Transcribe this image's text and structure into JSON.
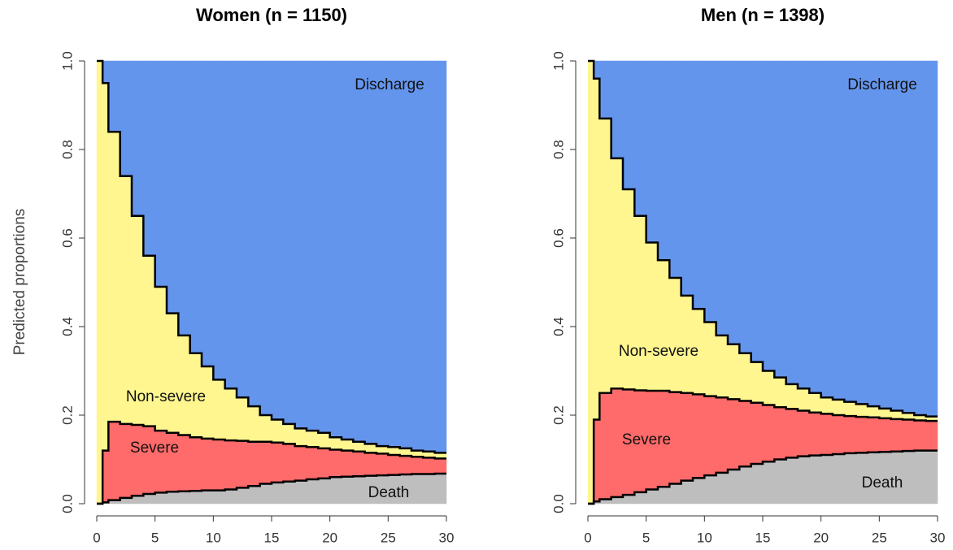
{
  "chart_data": [
    {
      "type": "step-area",
      "title": "Women (n = 1150)",
      "ylabel": "Predicted proportions",
      "x": [
        0,
        0.5,
        1,
        2,
        3,
        4,
        5,
        6,
        7,
        8,
        9,
        10,
        11,
        12,
        13,
        14,
        15,
        16,
        17,
        18,
        19,
        20,
        21,
        22,
        23,
        24,
        25,
        26,
        27,
        28,
        29
      ],
      "xlim": [
        0,
        30
      ],
      "xticks": [
        0,
        5,
        10,
        15,
        20,
        25,
        30
      ],
      "ylim": [
        0,
        1
      ],
      "yticks": [
        {
          "value": 0,
          "label": "0.0"
        },
        {
          "value": 0.2,
          "label": "0.2"
        },
        {
          "value": 0.4,
          "label": "0.4"
        },
        {
          "value": 0.6,
          "label": "0.6"
        },
        {
          "value": 0.8,
          "label": "0.8"
        },
        {
          "value": 1,
          "label": "1.0"
        }
      ],
      "series": [
        {
          "name": "Death",
          "color": "#bebebe",
          "values": [
            0,
            0.003,
            0.008,
            0.013,
            0.018,
            0.022,
            0.025,
            0.027,
            0.028,
            0.029,
            0.03,
            0.03,
            0.032,
            0.036,
            0.04,
            0.045,
            0.048,
            0.05,
            0.052,
            0.055,
            0.057,
            0.06,
            0.061,
            0.062,
            0.063,
            0.064,
            0.065,
            0.066,
            0.067,
            0.067,
            0.068
          ]
        },
        {
          "name": "Severe",
          "color": "#ff6a6a",
          "values": [
            0,
            0.117,
            0.177,
            0.167,
            0.16,
            0.153,
            0.14,
            0.133,
            0.127,
            0.121,
            0.117,
            0.115,
            0.111,
            0.106,
            0.1,
            0.095,
            0.09,
            0.085,
            0.078,
            0.073,
            0.068,
            0.062,
            0.059,
            0.056,
            0.052,
            0.049,
            0.045,
            0.042,
            0.039,
            0.037,
            0.034
          ]
        },
        {
          "name": "Non-severe",
          "color": "#fff68f",
          "values": [
            1.0,
            0.83,
            0.655,
            0.56,
            0.472,
            0.385,
            0.325,
            0.27,
            0.225,
            0.19,
            0.163,
            0.135,
            0.117,
            0.098,
            0.08,
            0.06,
            0.052,
            0.045,
            0.04,
            0.037,
            0.035,
            0.028,
            0.025,
            0.022,
            0.02,
            0.017,
            0.018,
            0.017,
            0.014,
            0.014,
            0.013
          ]
        },
        {
          "name": "Discharge",
          "color": "#6495ed",
          "values": [
            0,
            0.05,
            0.16,
            0.26,
            0.35,
            0.44,
            0.51,
            0.57,
            0.62,
            0.66,
            0.69,
            0.72,
            0.74,
            0.76,
            0.78,
            0.8,
            0.81,
            0.82,
            0.83,
            0.835,
            0.84,
            0.85,
            0.855,
            0.86,
            0.865,
            0.87,
            0.872,
            0.875,
            0.88,
            0.882,
            0.885
          ]
        }
      ]
    },
    {
      "type": "step-area",
      "title": "Men (n = 1398)",
      "x": [
        0,
        0.5,
        1,
        2,
        3,
        4,
        5,
        6,
        7,
        8,
        9,
        10,
        11,
        12,
        13,
        14,
        15,
        16,
        17,
        18,
        19,
        20,
        21,
        22,
        23,
        24,
        25,
        26,
        27,
        28,
        29
      ],
      "xlim": [
        0,
        30
      ],
      "xticks": [
        0,
        5,
        10,
        15,
        20,
        25,
        30
      ],
      "ylim": [
        0,
        1
      ],
      "yticks": [
        {
          "value": 0,
          "label": "0.0"
        },
        {
          "value": 0.2,
          "label": "0.2"
        },
        {
          "value": 0.4,
          "label": "0.4"
        },
        {
          "value": 0.6,
          "label": "0.6"
        },
        {
          "value": 0.8,
          "label": "0.8"
        },
        {
          "value": 1,
          "label": "1.0"
        }
      ],
      "series": [
        {
          "name": "Death",
          "color": "#bebebe",
          "values": [
            0,
            0.005,
            0.01,
            0.015,
            0.02,
            0.026,
            0.032,
            0.038,
            0.045,
            0.052,
            0.058,
            0.064,
            0.07,
            0.077,
            0.084,
            0.09,
            0.095,
            0.1,
            0.104,
            0.107,
            0.109,
            0.11,
            0.112,
            0.114,
            0.115,
            0.116,
            0.117,
            0.118,
            0.119,
            0.12,
            0.12
          ]
        },
        {
          "name": "Severe",
          "color": "#ff6a6a",
          "values": [
            0,
            0.185,
            0.24,
            0.245,
            0.238,
            0.23,
            0.223,
            0.217,
            0.207,
            0.198,
            0.189,
            0.179,
            0.17,
            0.159,
            0.148,
            0.138,
            0.128,
            0.118,
            0.11,
            0.103,
            0.097,
            0.093,
            0.088,
            0.084,
            0.081,
            0.079,
            0.076,
            0.073,
            0.071,
            0.068,
            0.067
          ]
        },
        {
          "name": "Non-severe",
          "color": "#fff68f",
          "values": [
            1.0,
            0.77,
            0.62,
            0.52,
            0.452,
            0.394,
            0.335,
            0.295,
            0.258,
            0.22,
            0.193,
            0.167,
            0.14,
            0.124,
            0.108,
            0.092,
            0.077,
            0.067,
            0.056,
            0.05,
            0.044,
            0.037,
            0.035,
            0.032,
            0.029,
            0.025,
            0.022,
            0.019,
            0.015,
            0.012,
            0.01
          ]
        },
        {
          "name": "Discharge",
          "color": "#6495ed",
          "values": [
            0,
            0.04,
            0.13,
            0.22,
            0.29,
            0.35,
            0.41,
            0.45,
            0.49,
            0.53,
            0.56,
            0.59,
            0.62,
            0.64,
            0.66,
            0.68,
            0.7,
            0.715,
            0.73,
            0.74,
            0.75,
            0.76,
            0.765,
            0.77,
            0.775,
            0.78,
            0.785,
            0.79,
            0.795,
            0.8,
            0.803
          ]
        }
      ]
    }
  ]
}
